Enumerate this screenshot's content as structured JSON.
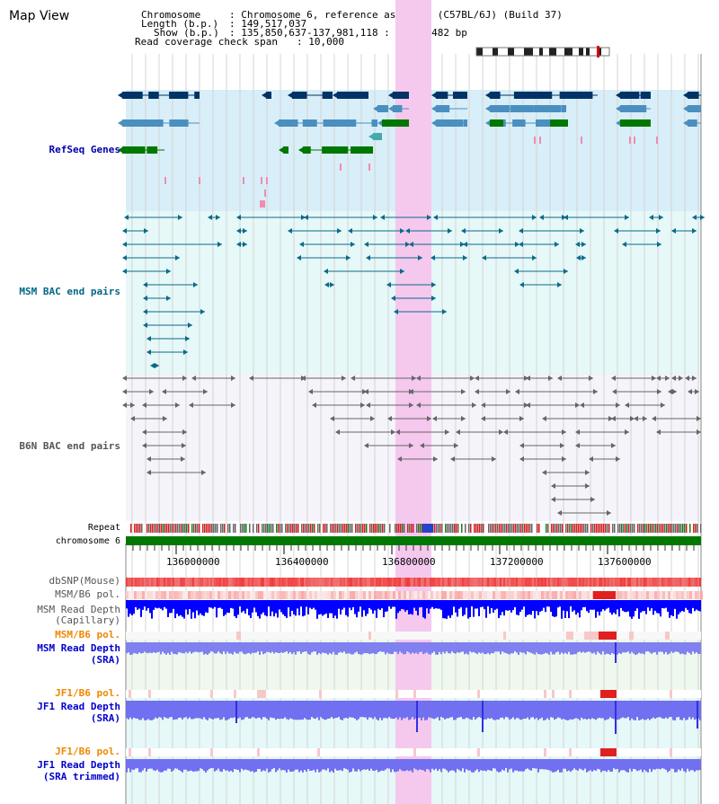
{
  "page": {
    "title": "Map View"
  },
  "info": {
    "chromosome_label": "Chromosome",
    "chromosome_value": ": Chromosome 6, reference assembly (C57BL/6J) (Build 37)",
    "length_label": "Length (b.p.)",
    "length_value": ": 149,517,037",
    "show_label": "Show (b.p.)",
    "show_value": ": 135,850,637-137,981,118 : 2,130,482 bp",
    "span_label": "Read coverage check span",
    "span_value": ": 10,000"
  },
  "tracks": {
    "refseq": "RefSeq Genes",
    "msm_bac": "MSM BAC end pairs",
    "b6n_bac": "B6N BAC end pairs",
    "repeat": "Repeat",
    "chromosome": "chromosome 6",
    "dbsnp": "dbSNP(Mouse)",
    "msm_b6_pol": "MSM/B6 pol.",
    "msm_read_depth_cap_1": "MSM Read Depth",
    "msm_read_depth_cap_2": "(Capillary)",
    "msm_b6_pol_2": "MSM/B6 pol.",
    "msm_read_depth_sra_1": "MSM Read Depth",
    "msm_read_depth_sra_2": "(SRA)",
    "jf1_b6_pol": "JF1/B6 pol.",
    "jf1_read_depth_sra_1": "JF1 Read Depth",
    "jf1_read_depth_sra_2": "(SRA)",
    "jf1_b6_pol_2": "JF1/B6 pol.",
    "jf1_read_depth_trim_1": "JF1 Read Depth",
    "jf1_read_depth_trim_2": "(SRA trimmed)"
  },
  "axis": {
    "ticks": [
      "136000000",
      "136400000",
      "136800000",
      "137200000",
      "137600000"
    ]
  },
  "colors": {
    "refseq_label": "#0000aa",
    "msm_label": "#006688",
    "b6n_label": "#555555",
    "pol_label": "#ee8800",
    "depth_label": "#0000cc",
    "highlight": "#f5c8ee",
    "refseq_bg": "#d8eef8",
    "msm_bg": "#e6f8f8",
    "b6n_bg": "#f4f4fa",
    "chrom_green": "#007700"
  }
}
